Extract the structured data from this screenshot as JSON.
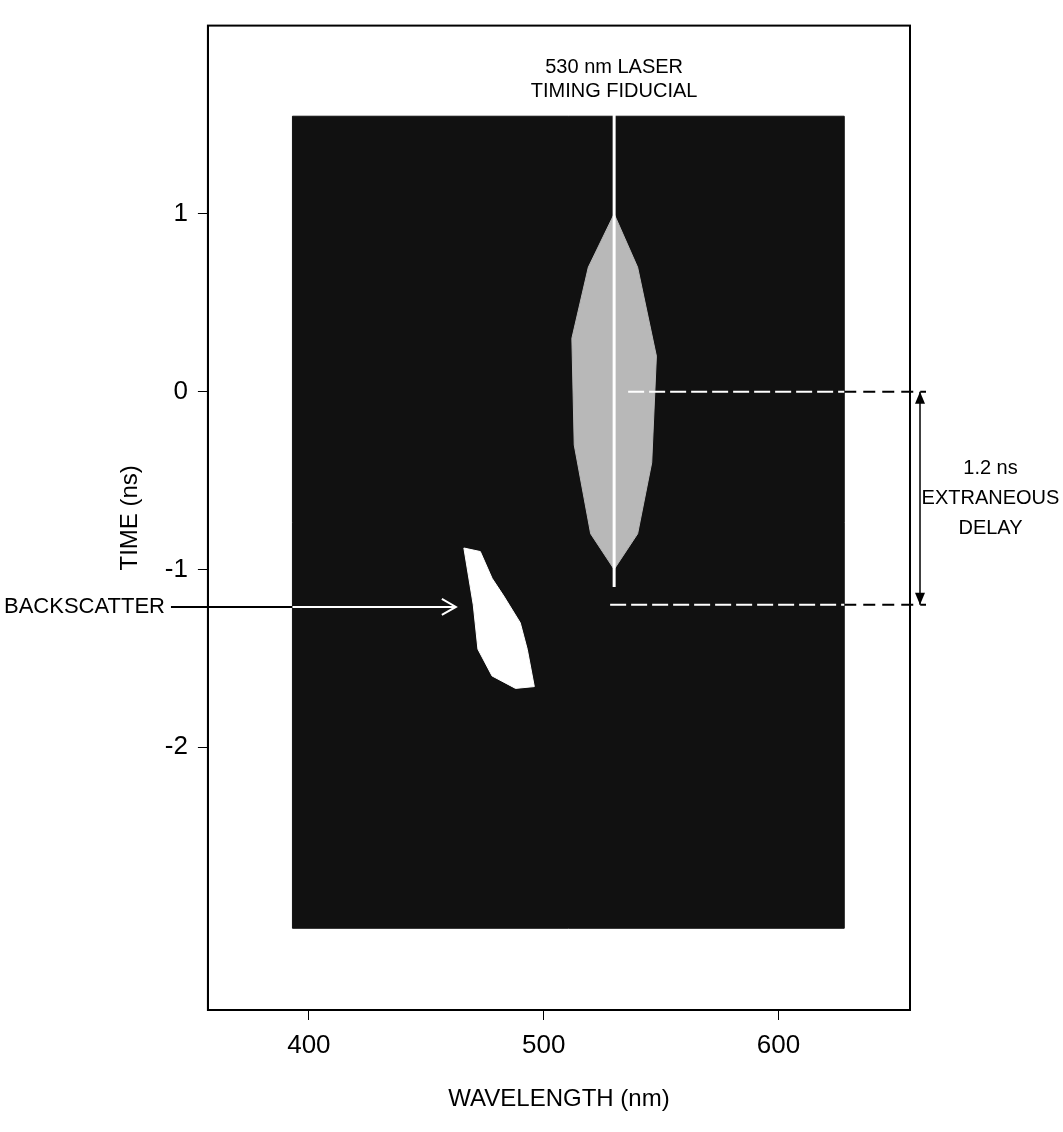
{
  "chart_data": {
    "type": "scatter",
    "x_label": "WAVELENGTH (nm)",
    "y_label": "TIME (ns)",
    "xlim": [
      357,
      656
    ],
    "xticks": [
      400,
      500,
      600
    ],
    "ylim": [
      -3.48,
      2.06
    ],
    "yticks": [
      -2,
      -1,
      0,
      1
    ],
    "grid": false,
    "series": [
      {
        "type": "area",
        "color": "#111111",
        "line_style": "solid",
        "values": [
          [
            393,
            1.55
          ],
          [
            628,
            1.55
          ],
          [
            628,
            -3.02
          ],
          [
            393,
            -3.02
          ]
        ]
      },
      {
        "type": "area",
        "color": "#b8b8b8",
        "line_style": "solid",
        "values": [
          [
            530,
            1.0
          ],
          [
            540,
            0.7
          ],
          [
            548,
            0.2
          ],
          [
            546,
            -0.4
          ],
          [
            540,
            -0.8
          ],
          [
            530,
            -1.0
          ],
          [
            520,
            -0.8
          ],
          [
            513,
            -0.3
          ],
          [
            512,
            0.3
          ],
          [
            519,
            0.7
          ]
        ]
      },
      {
        "type": "line",
        "color": "#ffffff",
        "line_style": "solid",
        "values": [
          [
            530,
            1.6
          ],
          [
            530,
            -1.1
          ]
        ]
      },
      {
        "type": "area",
        "color": "#ffffff",
        "line_style": "solid",
        "values": [
          [
            466,
            -0.88
          ],
          [
            473,
            -0.9
          ],
          [
            478,
            -1.05
          ],
          [
            483,
            -1.15
          ],
          [
            490,
            -1.3
          ],
          [
            493,
            -1.45
          ],
          [
            496,
            -1.66
          ],
          [
            488,
            -1.67
          ],
          [
            478,
            -1.6
          ],
          [
            472,
            -1.45
          ],
          [
            470,
            -1.2
          ]
        ]
      }
    ],
    "fiducial_label": [
      "530 nm LASER",
      "TIMING FIDUCIAL"
    ],
    "backscatter_label": "BACKSCATTER",
    "delay_label": [
      "1.2 ns",
      "EXTRANEOUS",
      "DELAY"
    ],
    "delay_marks": [
      0,
      -1.2
    ]
  }
}
